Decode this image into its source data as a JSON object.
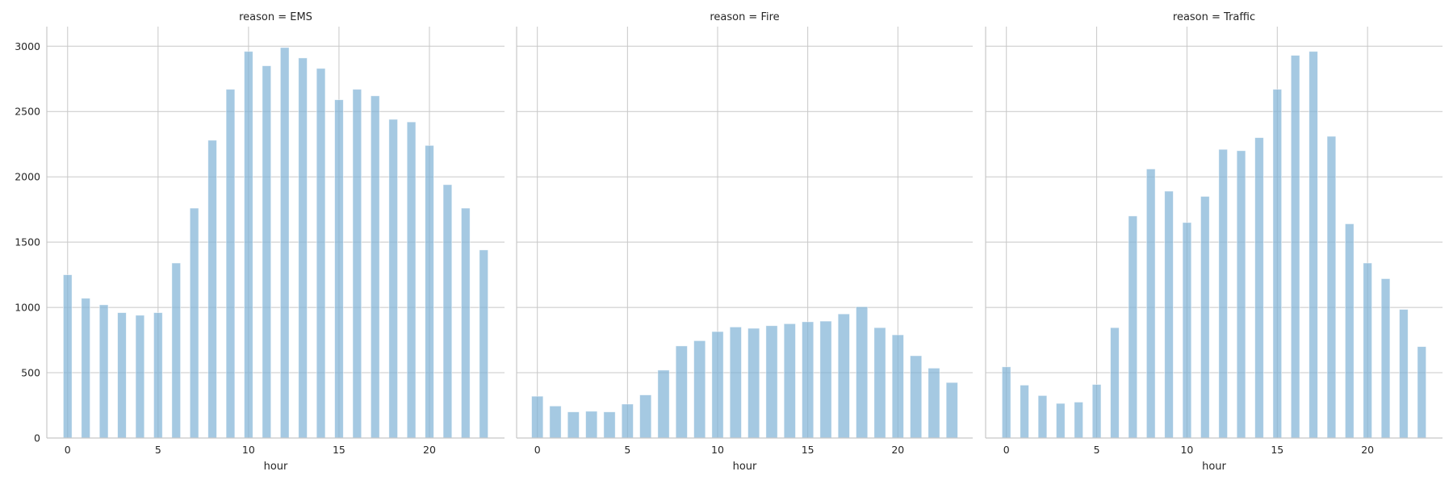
{
  "chart_data": [
    {
      "type": "bar",
      "title": "reason = EMS",
      "xlabel": "hour",
      "ylabel": "",
      "xlim": [
        -1.15,
        24.15
      ],
      "ylim": [
        0,
        3150
      ],
      "xticks": [
        0,
        5,
        10,
        15,
        20
      ],
      "yticks": [
        0,
        500,
        1000,
        1500,
        2000,
        2500,
        3000
      ],
      "grid": true,
      "bin_width": 0.479,
      "bars": [
        {
          "x": 0,
          "value": 1250
        },
        {
          "x": 1,
          "value": 1070
        },
        {
          "x": 2,
          "value": 1020
        },
        {
          "x": 3,
          "value": 960
        },
        {
          "x": 4,
          "value": 940
        },
        {
          "x": 5,
          "value": 960
        },
        {
          "x": 6,
          "value": 1340
        },
        {
          "x": 7,
          "value": 1760
        },
        {
          "x": 8,
          "value": 2280
        },
        {
          "x": 9,
          "value": 2670
        },
        {
          "x": 10,
          "value": 2960
        },
        {
          "x": 11,
          "value": 2850
        },
        {
          "x": 12,
          "value": 2990
        },
        {
          "x": 13,
          "value": 2910
        },
        {
          "x": 14,
          "value": 2830
        },
        {
          "x": 15,
          "value": 2590
        },
        {
          "x": 16,
          "value": 2670
        },
        {
          "x": 17,
          "value": 2620
        },
        {
          "x": 18,
          "value": 2440
        },
        {
          "x": 19,
          "value": 2420
        },
        {
          "x": 20,
          "value": 2240
        },
        {
          "x": 21,
          "value": 1940
        },
        {
          "x": 22,
          "value": 1760
        },
        {
          "x": 23,
          "value": 1440
        }
      ]
    },
    {
      "type": "bar",
      "title": "reason = Fire",
      "xlabel": "hour",
      "ylabel": "",
      "xlim": [
        -1.15,
        24.15
      ],
      "ylim": [
        0,
        3150
      ],
      "xticks": [
        0,
        5,
        10,
        15,
        20
      ],
      "yticks": [],
      "grid": true,
      "bin_width": 0.639,
      "bars": [
        {
          "x": 0,
          "value": 320
        },
        {
          "x": 1,
          "value": 245
        },
        {
          "x": 2,
          "value": 200
        },
        {
          "x": 3,
          "value": 205
        },
        {
          "x": 4,
          "value": 200
        },
        {
          "x": 5,
          "value": 260
        },
        {
          "x": 6,
          "value": 330
        },
        {
          "x": 7,
          "value": 520
        },
        {
          "x": 8,
          "value": 705
        },
        {
          "x": 9,
          "value": 745
        },
        {
          "x": 10,
          "value": 815
        },
        {
          "x": 11,
          "value": 850
        },
        {
          "x": 12,
          "value": 840
        },
        {
          "x": 13,
          "value": 860
        },
        {
          "x": 14,
          "value": 875
        },
        {
          "x": 15,
          "value": 890
        },
        {
          "x": 16,
          "value": 895
        },
        {
          "x": 17,
          "value": 950
        },
        {
          "x": 18,
          "value": 1005
        },
        {
          "x": 19,
          "value": 845
        },
        {
          "x": 20,
          "value": 790
        },
        {
          "x": 21,
          "value": 630
        },
        {
          "x": 22,
          "value": 535
        },
        {
          "x": 23,
          "value": 425
        }
      ]
    },
    {
      "type": "bar",
      "title": "reason = Traffic",
      "xlabel": "hour",
      "ylabel": "",
      "xlim": [
        -1.15,
        24.15
      ],
      "ylim": [
        0,
        3150
      ],
      "xticks": [
        0,
        5,
        10,
        15,
        20
      ],
      "yticks": [],
      "grid": true,
      "bin_width": 0.479,
      "bars": [
        {
          "x": 0,
          "value": 545
        },
        {
          "x": 1,
          "value": 405
        },
        {
          "x": 2,
          "value": 325
        },
        {
          "x": 3,
          "value": 265
        },
        {
          "x": 4,
          "value": 275
        },
        {
          "x": 5,
          "value": 410
        },
        {
          "x": 6,
          "value": 845
        },
        {
          "x": 7,
          "value": 1700
        },
        {
          "x": 8,
          "value": 2060
        },
        {
          "x": 9,
          "value": 1890
        },
        {
          "x": 10,
          "value": 1650
        },
        {
          "x": 11,
          "value": 1850
        },
        {
          "x": 12,
          "value": 2210
        },
        {
          "x": 13,
          "value": 2200
        },
        {
          "x": 14,
          "value": 2300
        },
        {
          "x": 15,
          "value": 2670
        },
        {
          "x": 16,
          "value": 2930
        },
        {
          "x": 17,
          "value": 2960
        },
        {
          "x": 18,
          "value": 2310
        },
        {
          "x": 19,
          "value": 1640
        },
        {
          "x": 20,
          "value": 1340
        },
        {
          "x": 21,
          "value": 1220
        },
        {
          "x": 22,
          "value": 985
        },
        {
          "x": 23,
          "value": 700
        }
      ]
    }
  ]
}
